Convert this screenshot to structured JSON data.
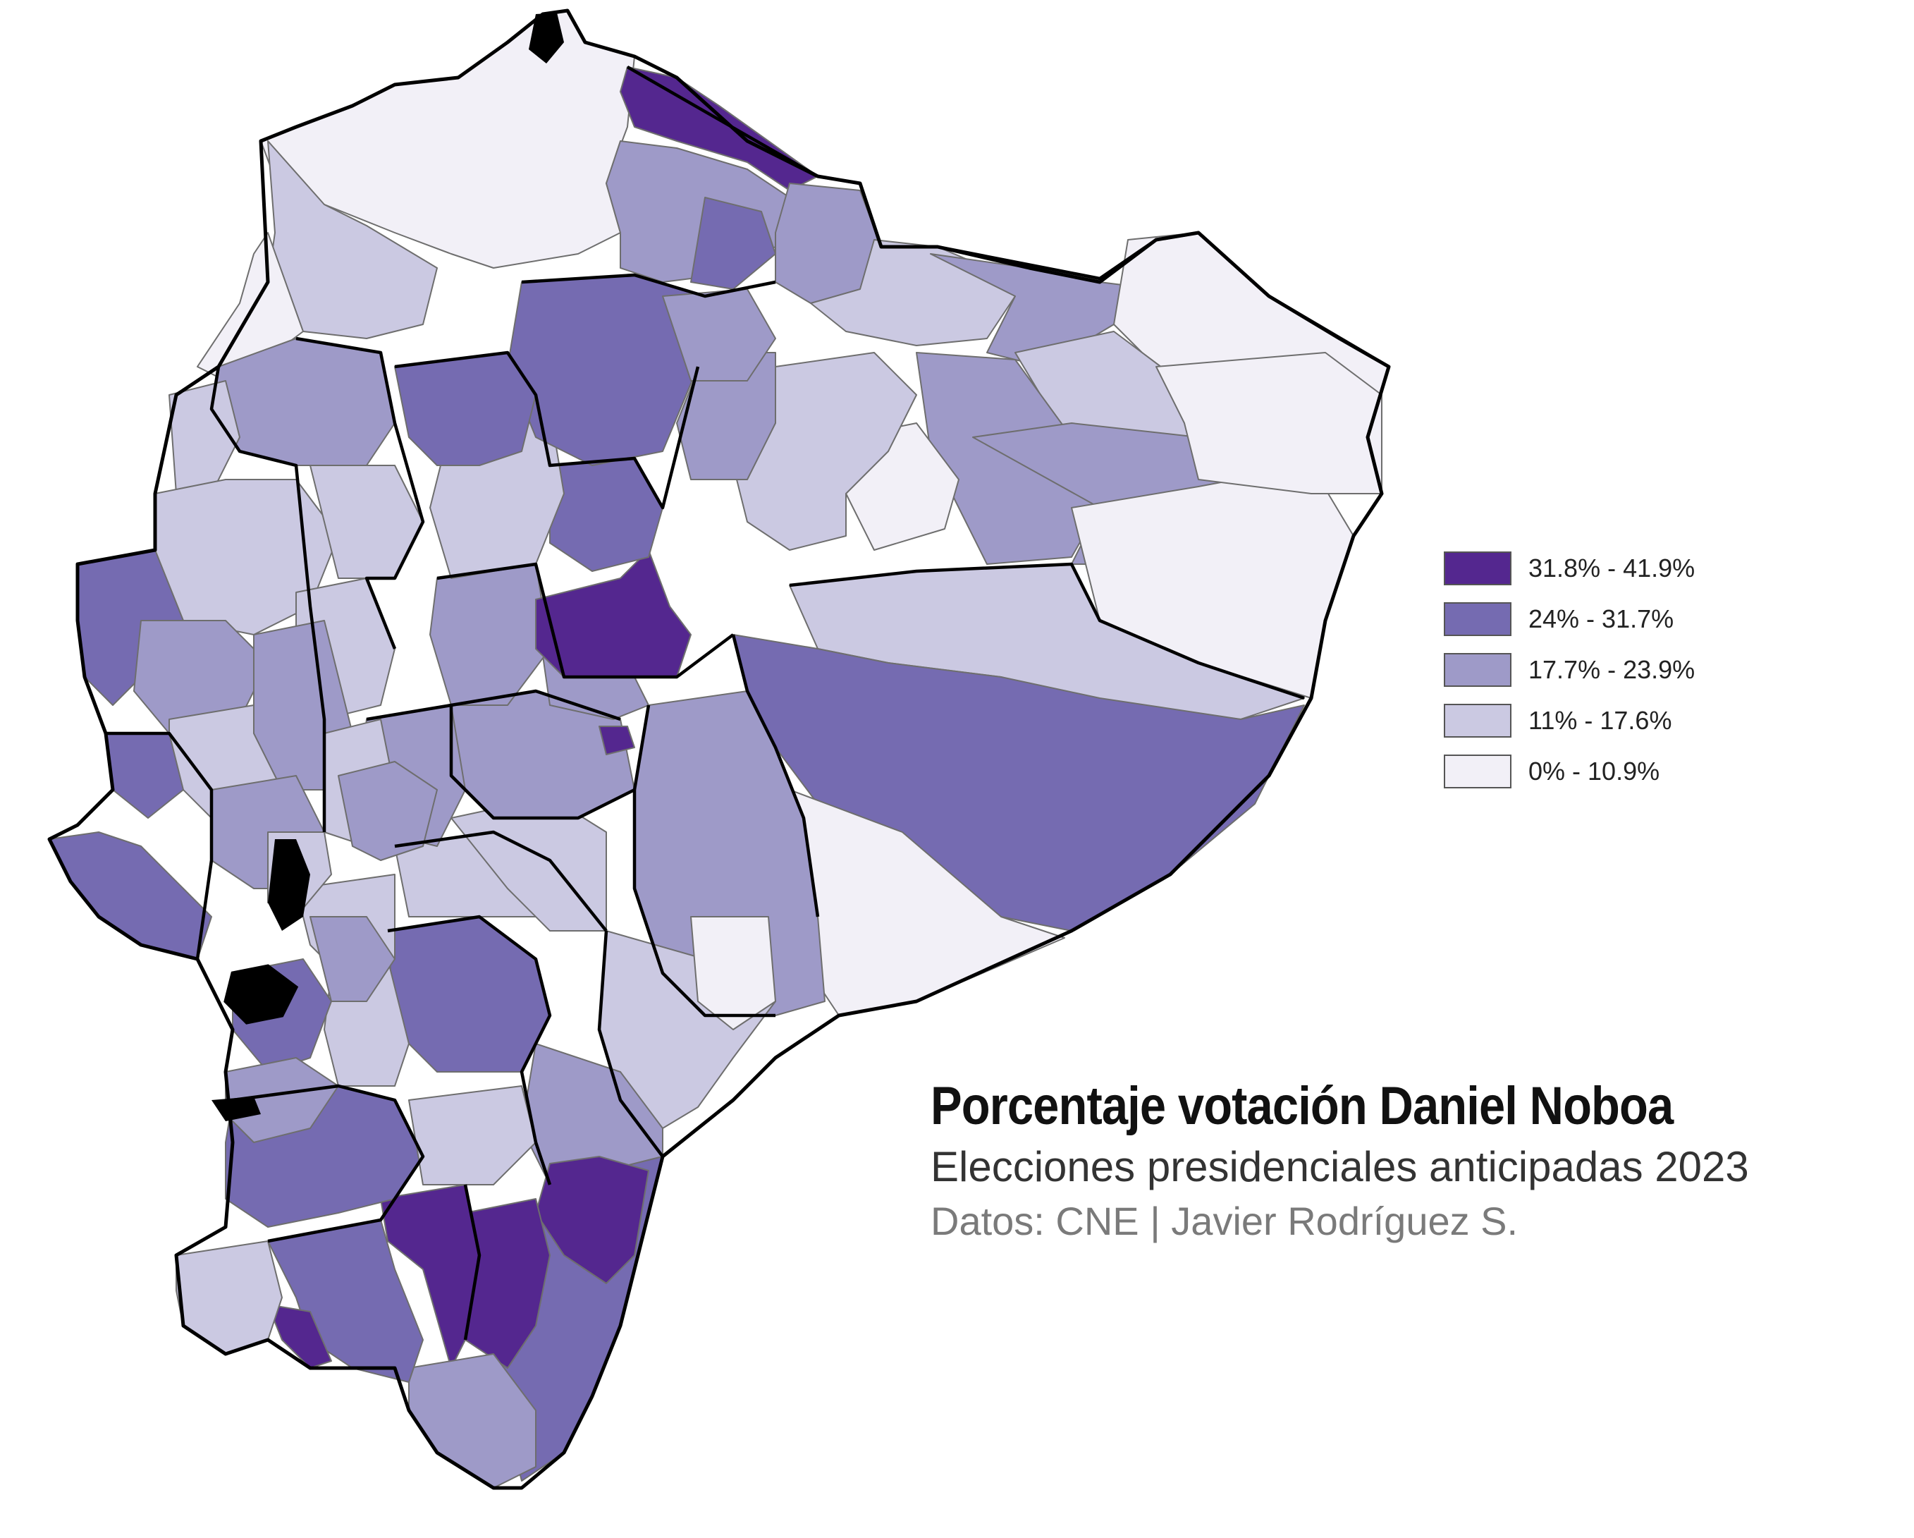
{
  "colors": {
    "class1": "#54278f",
    "class2": "#756bb1",
    "class3": "#9e9ac8",
    "class4": "#cbc9e2",
    "class5": "#f2f0f7"
  },
  "legend": [
    {
      "label": "31.8% - 41.9%",
      "color": "#54278f"
    },
    {
      "label": "24% - 31.7%",
      "color": "#756bb1"
    },
    {
      "label": "17.7% - 23.9%",
      "color": "#9e9ac8"
    },
    {
      "label": "11% - 17.6%",
      "color": "#cbc9e2"
    },
    {
      "label": "0% - 10.9%",
      "color": "#f2f0f7"
    }
  ],
  "title": "Porcentaje votación Daniel Noboa",
  "subtitle": "Elecciones presidenciales anticipadas 2023",
  "caption": "Datos: CNE | Javier Rodríguez S."
}
